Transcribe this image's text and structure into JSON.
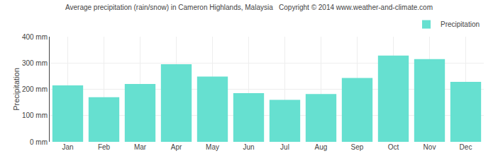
{
  "chart_data": {
    "type": "bar",
    "title": "Average precipitation (rain/snow) in Cameron Highlands, Malaysia   Copyright © 2014 www.weather-and-climate.com",
    "ylabel": "Precipitation",
    "categories": [
      "Jan",
      "Feb",
      "Mar",
      "Apr",
      "May",
      "Jun",
      "Jul",
      "Aug",
      "Sep",
      "Oct",
      "Nov",
      "Dec"
    ],
    "series": [
      {
        "name": "Precipitation",
        "color": "#66e0d0",
        "values": [
          215,
          170,
          220,
          295,
          248,
          185,
          160,
          182,
          243,
          328,
          315,
          228
        ]
      }
    ],
    "ylim": [
      0,
      400
    ],
    "yticks": [
      {
        "value": 0,
        "label": "0 mm"
      },
      {
        "value": 100,
        "label": "100 mm"
      },
      {
        "value": 200,
        "label": "200 mm"
      },
      {
        "value": 300,
        "label": "300 mm"
      },
      {
        "value": 400,
        "label": "400 mm"
      }
    ],
    "grid": true,
    "legend": "upper right"
  }
}
